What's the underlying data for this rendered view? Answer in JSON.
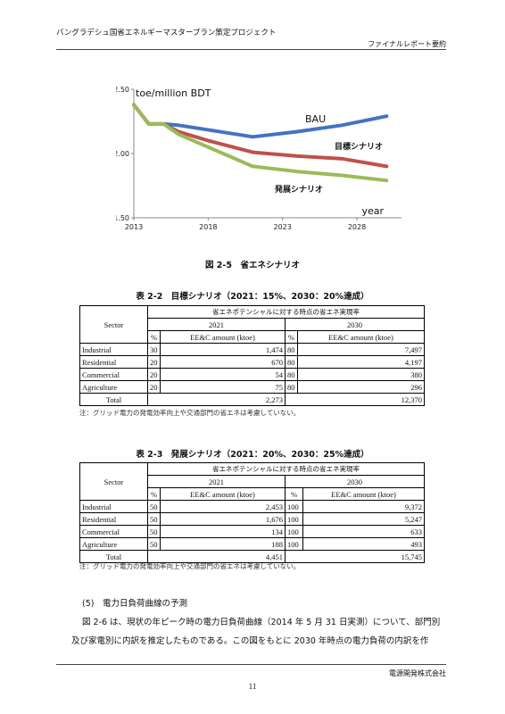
{
  "header": {
    "project_title": "バングラデシュ国省エネルギーマスタープラン策定プロジェクト",
    "report_type": "ファイナルレポート要約"
  },
  "figure": {
    "caption": "図 2-5　省エネシナリオ"
  },
  "chart_data": {
    "type": "line",
    "ylabel": "toe/million BDT",
    "xlabel": "year",
    "ylim": [
      1.5,
      2.5
    ],
    "xlim": [
      2013,
      2031
    ],
    "y_ticks": [
      "1.50",
      "2.00",
      "2.50"
    ],
    "x_ticks": [
      "2013",
      "2018",
      "2023",
      "2028"
    ],
    "grid": false,
    "series": [
      {
        "name": "BAU",
        "color": "#4472c4",
        "x": [
          2013,
          2014,
          2015,
          2016,
          2021,
          2024,
          2027,
          2030
        ],
        "y": [
          2.38,
          2.23,
          2.23,
          2.22,
          2.13,
          2.17,
          2.22,
          2.29
        ]
      },
      {
        "name": "目標シナリオ",
        "color": "#c0504d",
        "x": [
          2013,
          2014,
          2015,
          2016,
          2018,
          2021,
          2024,
          2027,
          2030
        ],
        "y": [
          2.38,
          2.23,
          2.23,
          2.17,
          2.1,
          2.01,
          1.98,
          1.96,
          1.9
        ]
      },
      {
        "name": "発展シナリオ",
        "color": "#9bbb59",
        "x": [
          2013,
          2014,
          2015,
          2016,
          2021,
          2024,
          2027,
          2030
        ],
        "y": [
          2.38,
          2.23,
          2.23,
          2.15,
          1.9,
          1.86,
          1.83,
          1.79
        ]
      }
    ]
  },
  "table2": {
    "caption": "表 2-2　目標シナリオ（2021：15%、2030：20%達成）",
    "sector_header": "Sector",
    "group_header": "省エネポテンシャルに対する時点の省エネ実現率",
    "years": [
      "2021",
      "2030"
    ],
    "pct_header": "%",
    "amount_header": "EE&C amount (ktoe)",
    "rows": [
      {
        "sector": "Industrial",
        "p2021": "30",
        "a2021": "1,474",
        "p2030": "80",
        "a2030": "7,497"
      },
      {
        "sector": "Residential",
        "p2021": "20",
        "a2021": "670",
        "p2030": "80",
        "a2030": "4,197"
      },
      {
        "sector": "Commercial",
        "p2021": "20",
        "a2021": "54",
        "p2030": "80",
        "a2030": "380"
      },
      {
        "sector": "Agriculture",
        "p2021": "20",
        "a2021": "75",
        "p2030": "80",
        "a2030": "296"
      }
    ],
    "total_label": "Total",
    "total_2021": "2,273",
    "total_2030": "12,370",
    "note": "注：グリッド電力の発電効率向上や交通部門の省エネは考慮していない。"
  },
  "table3": {
    "caption": "表 2-3　発展シナリオ（2021：20%、2030：25%達成）",
    "sector_header": "Sector",
    "group_header": "省エネポテンシャルに対する時点の省エネ実現率",
    "years": [
      "2021",
      "2030"
    ],
    "pct_header": "%",
    "amount_header": "EE&C amount (ktoe)",
    "rows": [
      {
        "sector": "Industrial",
        "p2021": "50",
        "a2021": "2,453",
        "p2030": "100",
        "a2030": "9,372"
      },
      {
        "sector": "Residential",
        "p2021": "50",
        "a2021": "1,676",
        "p2030": "100",
        "a2030": "5,247"
      },
      {
        "sector": "Commercial",
        "p2021": "50",
        "a2021": "134",
        "p2030": "100",
        "a2030": "633"
      },
      {
        "sector": "Agriculture",
        "p2021": "50",
        "a2021": "188",
        "p2030": "100",
        "a2030": "493"
      }
    ],
    "total_label": "Total",
    "total_2021": "4,451",
    "total_2030": "15,745",
    "note": "注：グリッド電力の発電効率向上や交通部門の省エネは考慮していない。"
  },
  "section": {
    "heading": "(5)　電力日負荷曲線の予測",
    "para_line1": "図 2-6 は、現状の年ピーク時の電力日負荷曲線（2014 年 5 月 31 日実測）について、部門別",
    "para_line2": "及び家電別に内訳を推定したものである。この図をもとに 2030 年時点の電力負荷の内訳を作"
  },
  "footer": {
    "company": "電源開発株式会社",
    "page_number": "11"
  }
}
